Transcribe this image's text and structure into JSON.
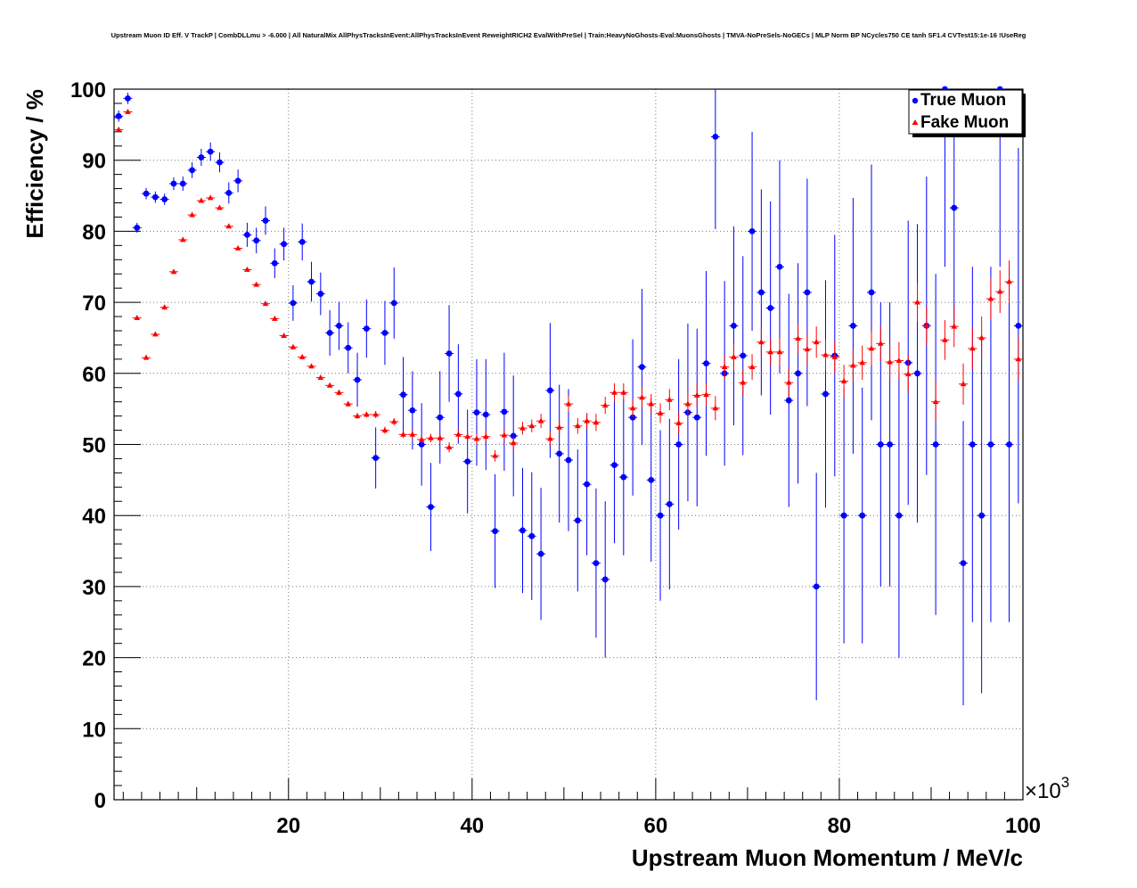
{
  "chart_data": {
    "type": "scatter",
    "title": "Upstream Muon ID Eff. V TrackP | CombDLLmu > -6.000 | All NaturalMix AllPhysTracksInEvent:AllPhysTracksInEvent ReweightRICH2 EvalWithPreSel | Train:HeavyNoGhosts-Eval:MuonsGhosts | TMVA-NoPreSels-NoGECs | MLP Norm BP NCycles750 CE tanh SF1.4 CVTest15:1e-16 !UseReg",
    "xlabel": "Upstream Muon Momentum / MeV/c",
    "ylabel": "Efficiency / %",
    "x_exponent": "×10",
    "x_exponent_power": "3",
    "xlim": [
      1,
      100
    ],
    "ylim": [
      0,
      100
    ],
    "xticks": [
      20,
      40,
      60,
      80,
      100
    ],
    "yticks": [
      0,
      10,
      20,
      30,
      40,
      50,
      60,
      70,
      80,
      90,
      100
    ],
    "grid": true,
    "legend_position": "top-right",
    "x_units": "thousands of MeV/c",
    "series": [
      {
        "name": "True Muon",
        "color": "#0000ff",
        "marker": "circle",
        "x": [
          1.5,
          2.5,
          3.5,
          4.5,
          5.5,
          6.5,
          7.5,
          8.5,
          9.5,
          10.5,
          11.5,
          12.5,
          13.5,
          14.5,
          15.5,
          16.5,
          17.5,
          18.5,
          19.5,
          20.5,
          21.5,
          22.5,
          23.5,
          24.5,
          25.5,
          26.5,
          27.5,
          28.5,
          29.5,
          30.5,
          31.5,
          32.5,
          33.5,
          34.5,
          35.5,
          36.5,
          37.5,
          38.5,
          39.5,
          40.5,
          41.5,
          42.5,
          43.5,
          44.5,
          45.5,
          46.5,
          47.5,
          48.5,
          49.5,
          50.5,
          51.5,
          52.5,
          53.5,
          54.5,
          55.5,
          56.5,
          57.5,
          58.5,
          59.5,
          60.5,
          61.5,
          62.5,
          63.5,
          64.5,
          65.5,
          66.5,
          67.5,
          68.5,
          69.5,
          70.5,
          71.5,
          72.5,
          73.5,
          74.5,
          75.5,
          76.5,
          77.5,
          78.5,
          79.5,
          80.5,
          81.5,
          82.5,
          83.5,
          84.5,
          85.5,
          86.5,
          87.5,
          88.5,
          89.5,
          90.5,
          91.5,
          92.5,
          93.5,
          94.5,
          95.5,
          96.5,
          97.5,
          98.5,
          99.5
        ],
        "values": [
          96.2,
          98.7,
          80.5,
          85.3,
          84.8,
          84.5,
          86.7,
          86.7,
          88.6,
          90.4,
          91.2,
          89.7,
          85.4,
          87.1,
          79.5,
          78.7,
          81.5,
          75.5,
          78.2,
          69.9,
          78.5,
          72.9,
          71.2,
          65.7,
          66.7,
          63.6,
          59.1,
          66.3,
          48.1,
          65.7,
          69.9,
          57.0,
          54.8,
          50.0,
          41.2,
          53.8,
          62.8,
          57.1,
          47.6,
          54.5,
          54.2,
          37.8,
          54.6,
          51.2,
          37.9,
          37.1,
          34.6,
          57.6,
          48.7,
          47.8,
          39.3,
          44.4,
          33.3,
          31.0,
          47.1,
          45.4,
          53.8,
          60.9,
          45.0,
          40.0,
          41.6,
          50.0,
          54.5,
          53.8,
          61.4,
          93.3,
          60.0,
          66.7,
          62.5,
          80.0,
          71.4,
          69.2,
          75.0,
          56.2,
          60.0,
          71.4,
          30.0,
          57.1,
          62.5,
          40.0,
          66.7,
          40.0,
          71.4,
          50.0,
          50.0,
          40.0,
          61.5,
          60.0,
          66.7,
          50.0,
          100.0,
          83.3,
          33.3,
          50.0,
          40.0,
          50.0,
          100.0,
          50.0,
          66.7
        ],
        "errors": [
          0.8,
          0.8,
          0.7,
          0.8,
          0.8,
          0.8,
          0.9,
          1.0,
          1.1,
          1.2,
          1.3,
          1.4,
          1.5,
          1.6,
          1.7,
          1.8,
          2.0,
          2.1,
          2.3,
          2.5,
          2.6,
          2.8,
          3.0,
          3.2,
          3.4,
          3.6,
          3.8,
          4.1,
          4.3,
          4.5,
          5.0,
          5.3,
          5.5,
          5.8,
          6.2,
          6.5,
          6.8,
          7.0,
          7.3,
          7.5,
          7.8,
          8.0,
          8.3,
          8.5,
          8.8,
          9.0,
          9.3,
          9.5,
          9.7,
          10.0,
          10.0,
          10.0,
          10.5,
          11.0,
          11.0,
          11.0,
          11.0,
          11.0,
          11.5,
          12.0,
          12.0,
          12.0,
          12.5,
          12.5,
          13.0,
          13.0,
          13.0,
          14.0,
          14.0,
          14.0,
          14.5,
          15.0,
          15.0,
          15.0,
          15.5,
          16.0,
          16.0,
          16.0,
          17.0,
          18.0,
          18.0,
          18.0,
          18.0,
          20.0,
          20.0,
          20.0,
          20.0,
          21.0,
          21.0,
          24.0,
          25.0,
          16.7,
          20.0,
          25.0,
          25.0,
          25.0,
          25.0,
          25.0,
          25.0
        ]
      },
      {
        "name": "Fake Muon",
        "color": "#ff0000",
        "marker": "triangle",
        "x": [
          1.5,
          2.5,
          3.5,
          4.5,
          5.5,
          6.5,
          7.5,
          8.5,
          9.5,
          10.5,
          11.5,
          12.5,
          13.5,
          14.5,
          15.5,
          16.5,
          17.5,
          18.5,
          19.5,
          20.5,
          21.5,
          22.5,
          23.5,
          24.5,
          25.5,
          26.5,
          27.5,
          28.5,
          29.5,
          30.5,
          31.5,
          32.5,
          33.5,
          34.5,
          35.5,
          36.5,
          37.5,
          38.5,
          39.5,
          40.5,
          41.5,
          42.5,
          43.5,
          44.5,
          45.5,
          46.5,
          47.5,
          48.5,
          49.5,
          50.5,
          51.5,
          52.5,
          53.5,
          54.5,
          55.5,
          56.5,
          57.5,
          58.5,
          59.5,
          60.5,
          61.5,
          62.5,
          63.5,
          64.5,
          65.5,
          66.5,
          67.5,
          68.5,
          69.5,
          70.5,
          71.5,
          72.5,
          73.5,
          74.5,
          75.5,
          76.5,
          77.5,
          78.5,
          79.5,
          80.5,
          81.5,
          82.5,
          83.5,
          84.5,
          85.5,
          86.5,
          87.5,
          88.5,
          89.5,
          90.5,
          91.5,
          92.5,
          93.5,
          94.5,
          95.5,
          96.5,
          97.5,
          98.5,
          99.5
        ],
        "values": [
          94.3,
          96.8,
          67.8,
          62.2,
          65.5,
          69.3,
          74.3,
          78.8,
          82.3,
          84.3,
          84.7,
          83.3,
          80.7,
          77.6,
          74.6,
          72.5,
          69.8,
          67.7,
          65.3,
          63.7,
          62.3,
          61.0,
          59.4,
          58.3,
          57.3,
          55.7,
          54.0,
          54.2,
          54.2,
          52.0,
          53.2,
          51.4,
          51.4,
          50.7,
          50.9,
          50.9,
          49.6,
          51.4,
          51.1,
          50.8,
          51.1,
          48.4,
          51.3,
          50.2,
          52.3,
          52.6,
          53.3,
          50.8,
          52.4,
          55.7,
          52.6,
          53.3,
          53.1,
          55.5,
          57.3,
          57.3,
          55.1,
          56.6,
          55.7,
          54.4,
          56.3,
          53.0,
          55.7,
          56.9,
          57.0,
          55.1,
          60.9,
          62.3,
          58.7,
          60.9,
          64.4,
          63.0,
          63.0,
          58.7,
          64.9,
          63.4,
          64.4,
          62.6,
          62.3,
          58.9,
          61.1,
          61.5,
          63.5,
          64.2,
          61.6,
          61.8,
          59.9,
          70.0,
          66.7,
          56.0,
          64.7,
          66.6,
          58.5,
          63.5,
          65.0,
          70.5,
          71.5,
          72.9,
          62.0
        ],
        "errors": [
          0.3,
          0.3,
          0.2,
          0.2,
          0.2,
          0.2,
          0.2,
          0.2,
          0.2,
          0.2,
          0.2,
          0.2,
          0.2,
          0.2,
          0.2,
          0.2,
          0.2,
          0.2,
          0.3,
          0.3,
          0.3,
          0.3,
          0.3,
          0.3,
          0.4,
          0.4,
          0.4,
          0.4,
          0.5,
          0.5,
          0.5,
          0.5,
          0.6,
          0.6,
          0.6,
          0.6,
          0.7,
          0.7,
          0.7,
          0.7,
          0.8,
          0.8,
          0.8,
          0.9,
          0.9,
          0.9,
          1.0,
          1.0,
          1.0,
          1.1,
          1.1,
          1.1,
          1.2,
          1.2,
          1.3,
          1.3,
          1.3,
          1.4,
          1.4,
          1.4,
          1.5,
          1.5,
          1.5,
          1.6,
          1.6,
          1.7,
          1.7,
          1.8,
          1.8,
          1.8,
          1.9,
          1.9,
          2.0,
          2.0,
          2.1,
          2.1,
          2.2,
          2.2,
          2.3,
          2.3,
          2.3,
          2.4,
          2.4,
          2.5,
          2.5,
          2.6,
          2.6,
          2.7,
          2.7,
          2.8,
          2.8,
          2.9,
          2.9,
          3.0,
          3.0,
          3.0,
          3.0,
          3.0,
          3.0
        ]
      }
    ]
  }
}
